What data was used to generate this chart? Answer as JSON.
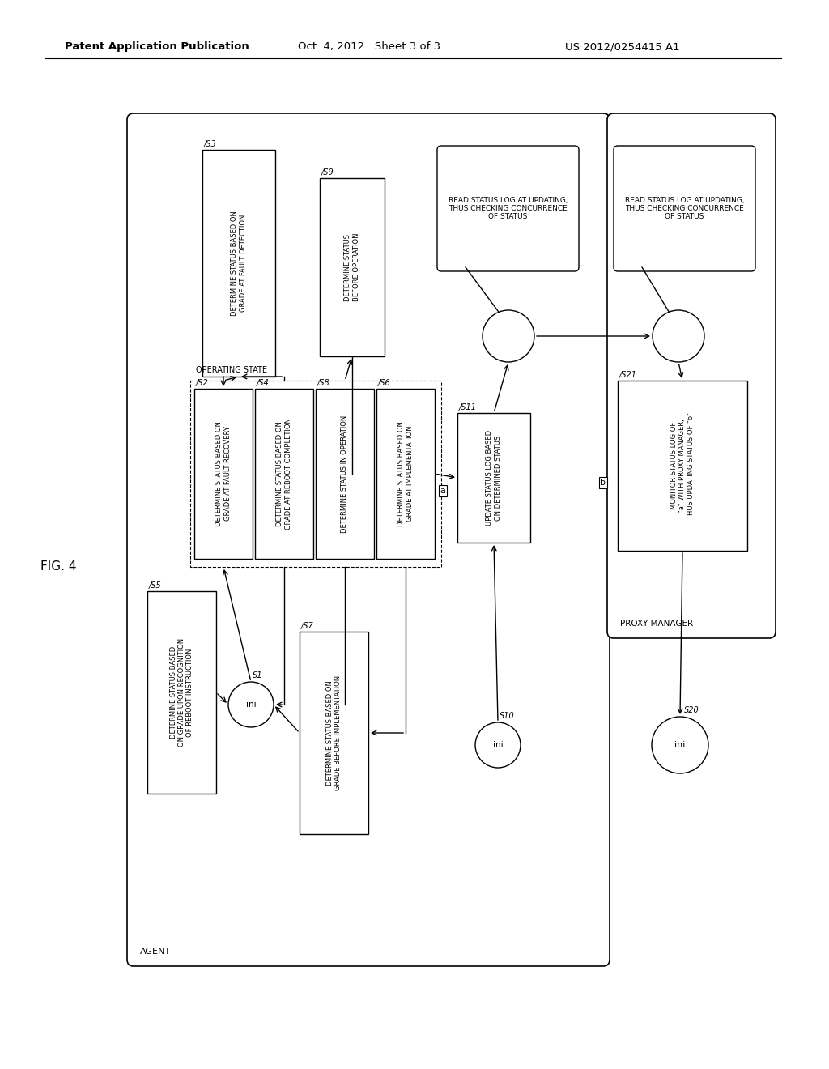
{
  "bg_color": "#ffffff",
  "header_left": "Patent Application Publication",
  "header_mid": "Oct. 4, 2012   Sheet 3 of 3",
  "header_right": "US 2012/0254415 A1",
  "fig_label": "FIG. 4",
  "agent_label": "AGENT",
  "proxy_label": "PROXY MANAGER",
  "s2_text": [
    "DETERMINE STATUS BASED ON",
    "GRADE AT FAULT RECOVERY"
  ],
  "s3_text": [
    "DETERMINE STATUS BASED ON",
    "GRADE AT FAULT DETECTION"
  ],
  "s4_text": [
    "DETERMINE STATUS BASED ON",
    "GRADE AT REBOOT COMPLETION"
  ],
  "s5_text": [
    "DETERMINE STATUS BASED",
    "ON GRADE UPON RECOGNITION",
    "OF REBOOT INSTRUCTION"
  ],
  "s6_text": [
    "DETERMINE STATUS BASED ON",
    "GRADE AT IMPLEMENTATION"
  ],
  "s7_text": [
    "DETERMINE STATUS BASED ON",
    "GRADE BEFORE IMPLEMENTATION"
  ],
  "s8_text": [
    "DETERMINE STATUS IN OPERATION"
  ],
  "s9_text": [
    "DETERMINE STATUS",
    "BEFORE OPERATION"
  ],
  "s11_text": [
    "UPDATE STATUS LOG BASED",
    "ON DETERMINED STATUS"
  ],
  "s21_text": [
    "MONITOR STATUS LOG OF",
    "\"a\" WITH PROXY MANAGER,",
    "THUS UPDATING STATUS OF \"b\""
  ],
  "callout_text": [
    "READ STATUS LOG AT UPDATING,",
    "THUS CHECKING CONCURRENCE",
    "OF STATUS"
  ],
  "operating_state": "OPERATING STATE"
}
